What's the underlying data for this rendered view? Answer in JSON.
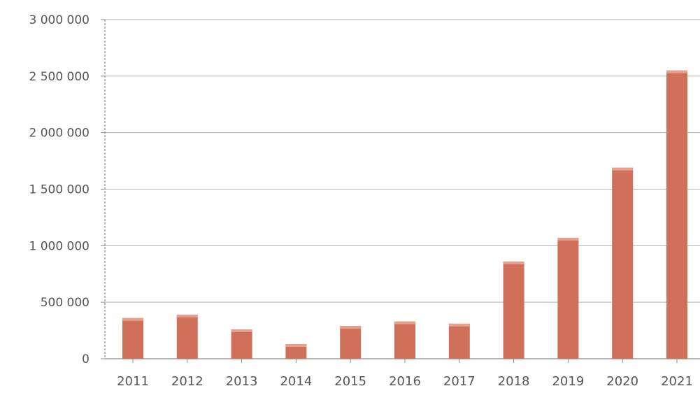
{
  "chart_data": {
    "type": "bar",
    "title": "",
    "xlabel": "",
    "ylabel": "",
    "categories": [
      "2011",
      "2012",
      "2013",
      "2014",
      "2015",
      "2016",
      "2017",
      "2018",
      "2019",
      "2020",
      "2021"
    ],
    "values": [
      360000,
      390000,
      260000,
      130000,
      290000,
      330000,
      310000,
      860000,
      1070000,
      1690000,
      2550000
    ],
    "ylim": [
      0,
      3000000
    ],
    "yticks": [
      0,
      500000,
      1000000,
      1500000,
      2000000,
      2500000,
      3000000
    ],
    "ytick_labels": [
      "0",
      "500 000",
      "1 000 000",
      "1 500 000",
      "2 000 000",
      "2 500 000",
      "3 000 000"
    ],
    "grid": true,
    "legend": "none",
    "colors": {
      "bar": "#d1705a",
      "bar_highlight": "#e8a08c",
      "grid": "#7a7a7a",
      "axis": "#8a8a8a",
      "tick_label": "#555555"
    }
  }
}
